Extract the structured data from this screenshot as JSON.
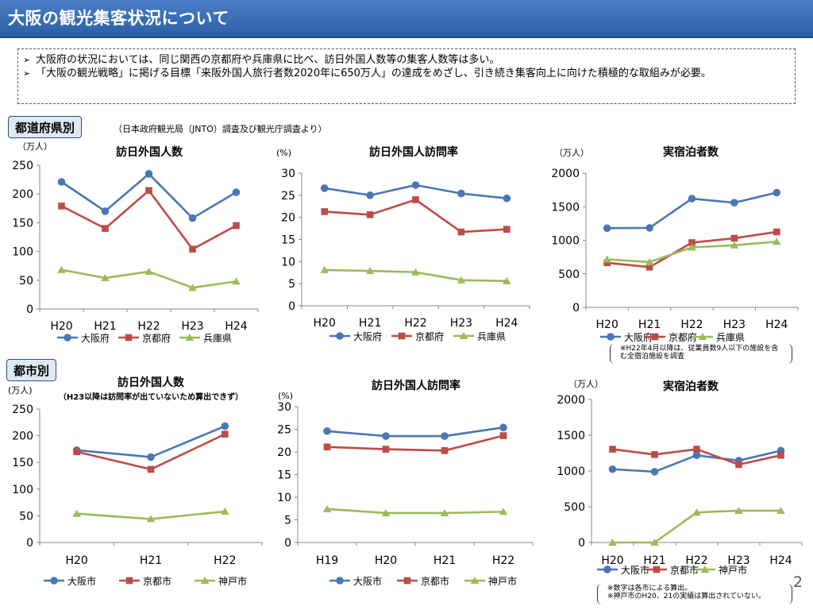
{
  "title": "大阪の観光集客状況について",
  "summary": [
    "大阪府の状況においては、同じ関西の京都府や兵庫県に比べ、訪日外国人数等の集客人数等は多い。",
    "「大阪の観光戦略」に掲げる目標「来阪外国人旅行者数2020年に650万人」の達成をめざし、引き続き集客向上に向けた積極的な取組みが必要。"
  ],
  "section_prefecture": "都道府県別",
  "section_city": "都市別",
  "source_note": "（日本政府観光局（JNTO）調査及び観光庁調査より）",
  "note_pref_lodging": "※H22年4月以降は、従業員数9人以下の施設を含む全宿泊施設を調査",
  "note_city_lodging": "※数字は各市による算出。\n※神戸市のH20、21の実績は算出されていない。",
  "page_number": "2",
  "colors": {
    "osaka": "#4a76b5",
    "kyoto": "#be4b48",
    "hyogo": "#9bbb59"
  },
  "chart_data": [
    {
      "type": "line",
      "title": "訪日外国人数",
      "unit": "（万人）",
      "ylim": [
        0,
        250
      ],
      "ystep": 50,
      "categories": [
        "H20",
        "H21",
        "H22",
        "H23",
        "H24"
      ],
      "series": [
        {
          "name": "大阪府",
          "color": "#4a76b5",
          "values": [
            221,
            170,
            235,
            158,
            203
          ]
        },
        {
          "name": "京都府",
          "color": "#be4b48",
          "values": [
            179,
            140,
            206,
            104,
            145
          ]
        },
        {
          "name": "兵庫県",
          "color": "#9bbb59",
          "values": [
            68,
            54,
            65,
            37,
            48
          ]
        }
      ]
    },
    {
      "type": "line",
      "title": "訪日外国人訪問率",
      "unit": "(%)",
      "ylim": [
        0,
        30
      ],
      "ystep": 5,
      "categories": [
        "H20",
        "H21",
        "H22",
        "H23",
        "H24"
      ],
      "series": [
        {
          "name": "大阪府",
          "color": "#4a76b5",
          "values": [
            26.6,
            25.0,
            27.3,
            25.4,
            24.3
          ]
        },
        {
          "name": "京都府",
          "color": "#be4b48",
          "values": [
            21.3,
            20.6,
            24.0,
            16.7,
            17.3
          ]
        },
        {
          "name": "兵庫県",
          "color": "#9bbb59",
          "values": [
            8.1,
            7.9,
            7.6,
            5.8,
            5.6
          ]
        }
      ]
    },
    {
      "type": "line",
      "title": "実宿泊者数",
      "unit": "（万人）",
      "ylim": [
        0,
        2000
      ],
      "ystep": 500,
      "categories": [
        "H20",
        "H21",
        "H22",
        "H23",
        "H24"
      ],
      "series": [
        {
          "name": "大阪府",
          "color": "#4a76b5",
          "values": [
            1180,
            1185,
            1620,
            1560,
            1710
          ]
        },
        {
          "name": "京都府",
          "color": "#be4b48",
          "values": [
            665,
            600,
            965,
            1030,
            1125
          ]
        },
        {
          "name": "兵庫県",
          "color": "#9bbb59",
          "values": [
            715,
            675,
            895,
            925,
            980
          ]
        }
      ]
    },
    {
      "type": "line",
      "title": "訪日外国人数",
      "subtitle": "（H23以降は訪問率が出ていないため算出できず）",
      "unit": "(万人)",
      "ylim": [
        0,
        250
      ],
      "ystep": 50,
      "categories": [
        "H20",
        "H21",
        "H22"
      ],
      "series": [
        {
          "name": "大阪市",
          "color": "#4a76b5",
          "values": [
            173,
            160,
            218
          ]
        },
        {
          "name": "京都市",
          "color": "#be4b48",
          "values": [
            170,
            137,
            203
          ]
        },
        {
          "name": "神戸市",
          "color": "#9bbb59",
          "values": [
            54,
            44,
            58
          ]
        }
      ]
    },
    {
      "type": "line",
      "title": "訪日外国人訪問率",
      "unit": "(%)",
      "ylim": [
        0,
        30
      ],
      "ystep": 5,
      "categories": [
        "H19",
        "H20",
        "H21",
        "H22"
      ],
      "series": [
        {
          "name": "大阪市",
          "color": "#4a76b5",
          "values": [
            24.6,
            23.5,
            23.5,
            25.4
          ]
        },
        {
          "name": "京都市",
          "color": "#be4b48",
          "values": [
            21.1,
            20.6,
            20.3,
            23.6
          ]
        },
        {
          "name": "神戸市",
          "color": "#9bbb59",
          "values": [
            7.4,
            6.5,
            6.5,
            6.8
          ]
        }
      ]
    },
    {
      "type": "line",
      "title": "実宿泊者数",
      "unit": "（万人）",
      "ylim": [
        0,
        2000
      ],
      "ystep": 500,
      "categories": [
        "H20",
        "H21",
        "H22",
        "H23",
        "H24"
      ],
      "series": [
        {
          "name": "大阪市",
          "color": "#4a76b5",
          "values": [
            1025,
            990,
            1220,
            1145,
            1285
          ]
        },
        {
          "name": "京都市",
          "color": "#be4b48",
          "values": [
            1305,
            1230,
            1305,
            1090,
            1220
          ]
        },
        {
          "name": "神戸市",
          "color": "#9bbb59",
          "values": [
            0,
            0,
            420,
            445,
            445
          ]
        }
      ]
    }
  ]
}
